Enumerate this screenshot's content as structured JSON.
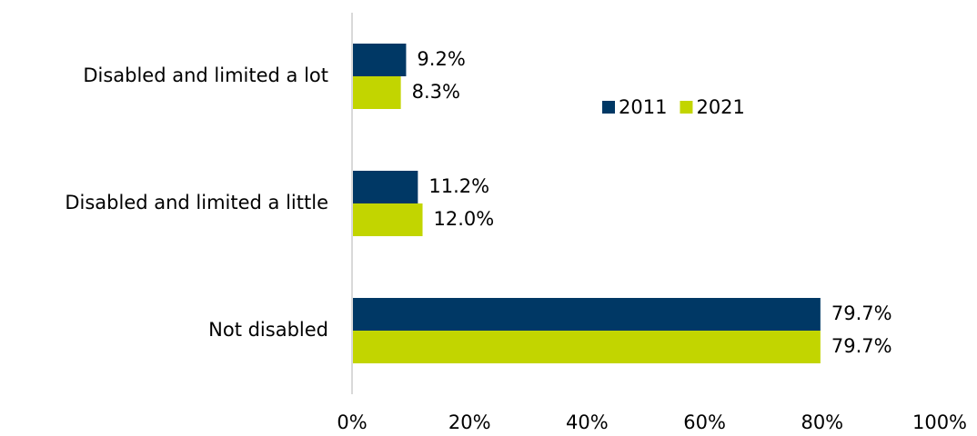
{
  "chart_data": {
    "type": "bar",
    "orientation": "horizontal",
    "categories": [
      "Disabled and limited a lot",
      "Disabled and limited a little",
      "Not disabled"
    ],
    "series": [
      {
        "name": "2011",
        "color": "#003865",
        "values": [
          9.2,
          11.2,
          79.7
        ],
        "value_labels": [
          "9.2%",
          "11.2%",
          "79.7%"
        ]
      },
      {
        "name": "2021",
        "color": "#c2d500",
        "values": [
          8.3,
          12.0,
          79.7
        ],
        "value_labels": [
          "8.3%",
          "12.0%",
          "79.7%"
        ]
      }
    ],
    "xlim": [
      0,
      100
    ],
    "xticks": [
      {
        "value": 0,
        "label": "0%"
      },
      {
        "value": 20,
        "label": "20%"
      },
      {
        "value": 40,
        "label": "40%"
      },
      {
        "value": 60,
        "label": "60%"
      },
      {
        "value": 80,
        "label": "80%"
      },
      {
        "value": 100,
        "label": "100%"
      }
    ],
    "legend": "top-right"
  }
}
